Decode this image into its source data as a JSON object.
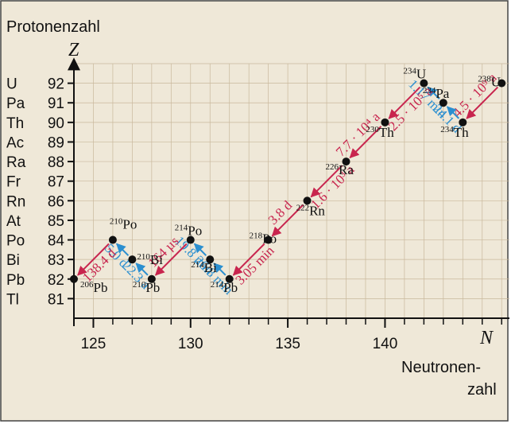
{
  "chart_data": {
    "type": "decay-chain",
    "y_title": "Protonenzahl",
    "y_symbol": "Z",
    "x_symbol": "N",
    "x_title": [
      "Neutronen-",
      "zahl"
    ],
    "xlim": [
      124,
      146.4
    ],
    "xticks": [
      125,
      130,
      135,
      140
    ],
    "ylim": [
      80,
      93
    ],
    "yticks": [
      81,
      82,
      83,
      84,
      85,
      86,
      87,
      88,
      89,
      90,
      91,
      92
    ],
    "element_labels": [
      "Tl",
      "Pb",
      "Bi",
      "Po",
      "At",
      "Rn",
      "Fr",
      "Ra",
      "Ac",
      "Th",
      "Pa",
      "U"
    ],
    "alpha_color": "#c8254e",
    "beta_color": "#2b8fd0",
    "nuclides": [
      {
        "mass": 238,
        "symbol": "U",
        "n": 146,
        "z": 92,
        "half_life": "4.5 · 10⁹ a",
        "decay": "alpha"
      },
      {
        "mass": 234,
        "symbol": "Th",
        "n": 144,
        "z": 90,
        "half_life": "24.1 d",
        "decay": "beta"
      },
      {
        "mass": 234,
        "symbol": "Pa",
        "n": 143,
        "z": 91,
        "half_life": "1.17 min",
        "decay": "beta"
      },
      {
        "mass": 234,
        "symbol": "U",
        "n": 142,
        "z": 92,
        "half_life": "2.5 · 10⁵ a",
        "decay": "alpha"
      },
      {
        "mass": 230,
        "symbol": "Th",
        "n": 140,
        "z": 90,
        "half_life": "7.7 · 10⁴ a",
        "decay": "alpha"
      },
      {
        "mass": 226,
        "symbol": "Ra",
        "n": 138,
        "z": 88,
        "half_life": "1.6 · 10³ a",
        "decay": "alpha"
      },
      {
        "mass": 222,
        "symbol": "Rn",
        "n": 136,
        "z": 86,
        "half_life": "3.8 d",
        "decay": "alpha"
      },
      {
        "mass": 218,
        "symbol": "Po",
        "n": 134,
        "z": 84,
        "half_life": "3.05 min",
        "decay": "alpha"
      },
      {
        "mass": 214,
        "symbol": "Pb",
        "n": 132,
        "z": 82,
        "half_life": "26.8 min",
        "decay": "beta"
      },
      {
        "mass": 214,
        "symbol": "Bi",
        "n": 131,
        "z": 83,
        "half_life": "19.8 min",
        "decay": "beta"
      },
      {
        "mass": 214,
        "symbol": "Po",
        "n": 130,
        "z": 84,
        "half_life": "164 µs",
        "decay": "alpha"
      },
      {
        "mass": 210,
        "symbol": "Pb",
        "n": 128,
        "z": 82,
        "half_life": "22.3 a",
        "decay": "beta"
      },
      {
        "mass": 210,
        "symbol": "Bi",
        "n": 127,
        "z": 83,
        "half_life": "5.0 d",
        "decay": "beta"
      },
      {
        "mass": 210,
        "symbol": "Po",
        "n": 126,
        "z": 84,
        "half_life": "138.4 d",
        "decay": "alpha"
      },
      {
        "mass": 206,
        "symbol": "Pb",
        "n": 124,
        "z": 82
      }
    ]
  }
}
